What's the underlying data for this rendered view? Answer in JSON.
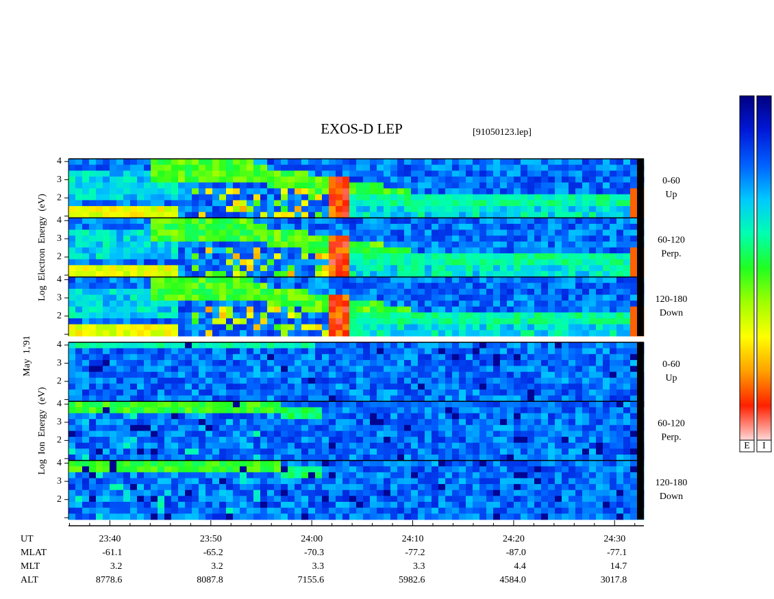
{
  "chart_data": {
    "type": "spectrogram",
    "title": "EXOS-D LEP",
    "file_label": "[91050123.lep]",
    "date_label": "May  1,'91",
    "xlim": [
      1415.9,
      1472.9
    ],
    "xticks": [
      {
        "value": 1420,
        "label": "23:40"
      },
      {
        "value": 1430,
        "label": "23:50"
      },
      {
        "value": 1440,
        "label": "24:00"
      },
      {
        "value": 1450,
        "label": "24:10"
      },
      {
        "value": 1460,
        "label": "24:20"
      },
      {
        "value": 1470,
        "label": "24:30"
      }
    ],
    "minor_xticks": [
      1416,
      1418,
      1422,
      1424,
      1426,
      1428,
      1432,
      1434,
      1436,
      1438,
      1442,
      1444,
      1446,
      1448,
      1452,
      1454,
      1456,
      1458,
      1462,
      1464,
      1466,
      1468,
      1472
    ],
    "x_label": "UT",
    "ephemeris": [
      {
        "name": "MLAT",
        "values": [
          "-61.1",
          "-65.2",
          "-70.3",
          "-77.2",
          "-87.0",
          "-77.1"
        ]
      },
      {
        "name": "MLT",
        "values": [
          "3.2",
          "3.2",
          "3.3",
          "3.3",
          "4.4",
          "14.7"
        ]
      },
      {
        "name": "ALT",
        "values": [
          "8778.6",
          "8087.8",
          "7155.6",
          "5982.6",
          "4584.0",
          "3017.8"
        ]
      }
    ],
    "groups": [
      {
        "species": "electron",
        "ylabel": "Log  Electron  Energy  (eV)",
        "panels": [
          {
            "name": "0-60",
            "direction": "Up"
          },
          {
            "name": "60-120",
            "direction": "Perp."
          },
          {
            "name": "120-180",
            "direction": "Down"
          }
        ]
      },
      {
        "species": "ion",
        "ylabel": "Log  Ion  Energy  (eV)",
        "panels": [
          {
            "name": "0-60",
            "direction": "Up"
          },
          {
            "name": "60-120",
            "direction": "Perp."
          },
          {
            "name": "120-180",
            "direction": "Down"
          }
        ]
      }
    ],
    "ylim": [
      0.9,
      4.15
    ],
    "yticks": [
      2,
      3,
      4
    ],
    "minor_yticks": [
      1
    ],
    "colormap": [
      "#000080",
      "#0018d8",
      "#0060ff",
      "#00c8ff",
      "#00ffb0",
      "#20ff20",
      "#a0ff00",
      "#ffff00",
      "#ffa000",
      "#ff2000",
      "#ffd8d8"
    ],
    "colorbar_labels": [
      "E",
      "I"
    ]
  }
}
